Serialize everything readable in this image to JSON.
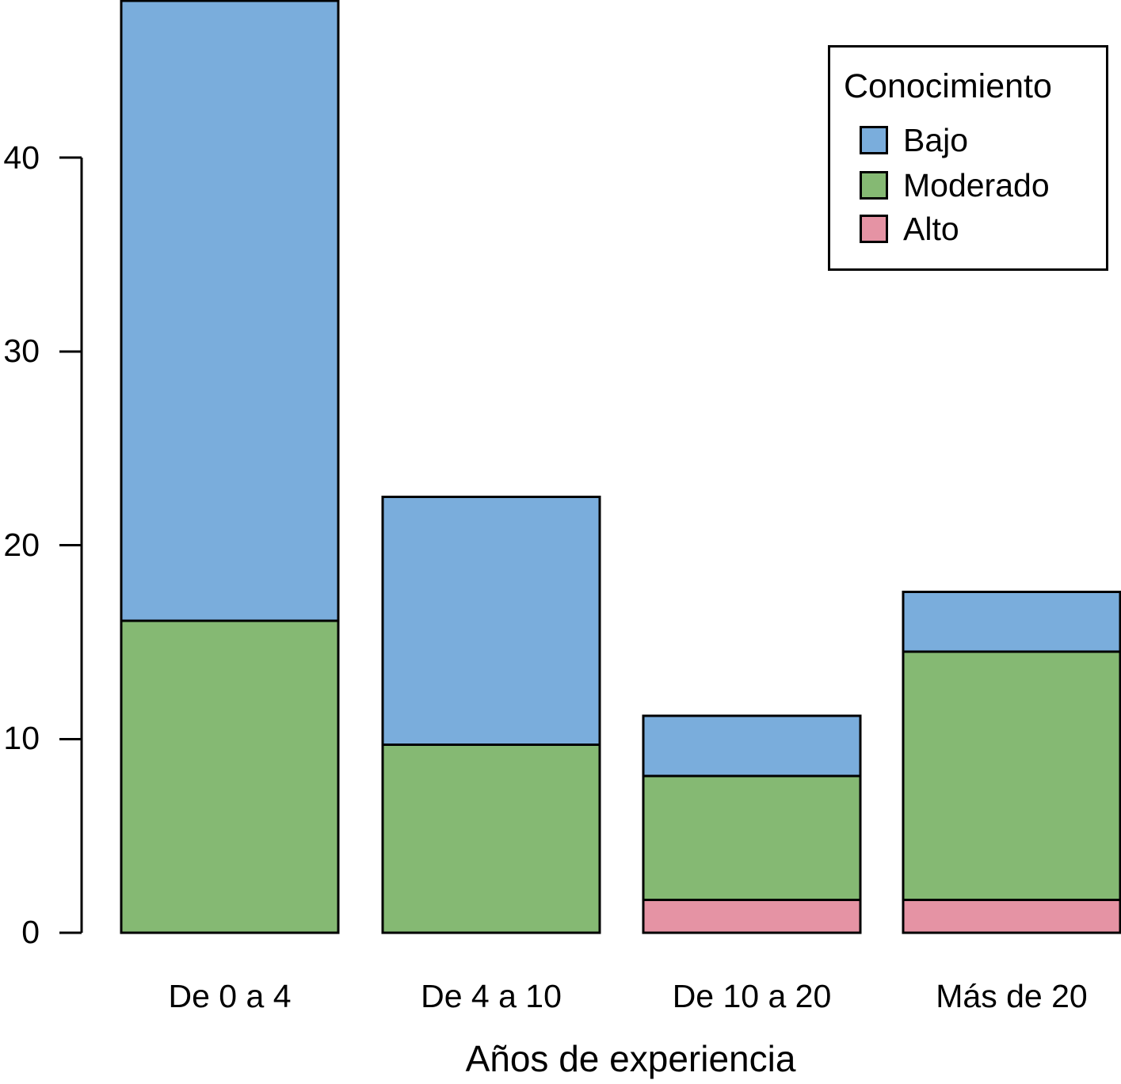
{
  "chart_data": {
    "type": "bar",
    "stacked": true,
    "title": "",
    "xlabel": "Años de experiencia",
    "ylabel": "",
    "categories": [
      "De 0 a 4",
      "De 4 a 10",
      "De 10 a 20",
      "Más de 20"
    ],
    "series": [
      {
        "name": "Bajo",
        "color": "#7AADDC",
        "values": [
          32.0,
          12.8,
          3.1,
          3.1
        ]
      },
      {
        "name": "Moderado",
        "color": "#85B973",
        "values": [
          16.1,
          9.7,
          6.4,
          12.8
        ]
      },
      {
        "name": "Alto",
        "color": "#E593A4",
        "values": [
          0,
          0,
          1.7,
          1.7
        ]
      }
    ],
    "stack_order_bottom_to_top": [
      "Alto",
      "Moderado",
      "Bajo"
    ],
    "stack_totals": [
      48.1,
      22.5,
      11.2,
      17.6
    ],
    "y_ticks": [
      0,
      10,
      20,
      30,
      40
    ],
    "ylim": [
      0,
      48.2
    ],
    "grid": false,
    "bar_border_color": "#000000",
    "axis_color": "#000000",
    "background_color": "#ffffff",
    "legend": {
      "title": "Conocimiento",
      "items": [
        "Bajo",
        "Moderado",
        "Alto"
      ],
      "position": "top-right"
    }
  }
}
